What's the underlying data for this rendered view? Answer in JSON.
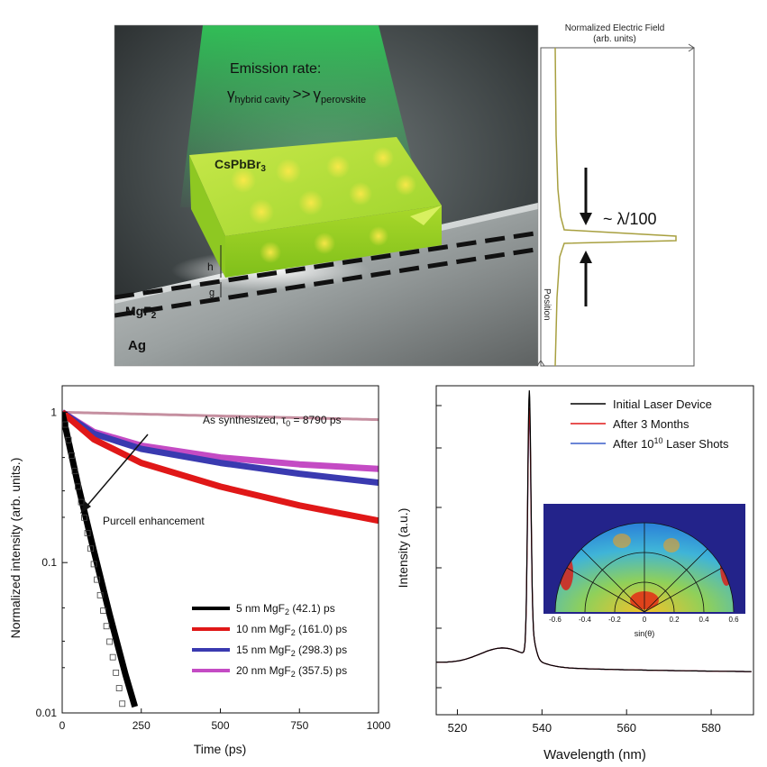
{
  "top": {
    "emission_title": "Emission rate:",
    "gamma": "γ",
    "sub_hybrid": "hybrid cavity",
    "gg": ">>",
    "sub_perov": "perovskite",
    "crystal_label": "CsPbBr",
    "crystal_sub": "3",
    "mgf_label": "MgF",
    "mgf_sub": "2",
    "ag_label": "Ag",
    "h_label": "h",
    "g_label": "g",
    "field_title_1": "Normalized Electric Field",
    "field_title_2": "(arb. units)",
    "position_label": "Position",
    "lambda_label": "~ λ/100"
  },
  "chart_data": [
    {
      "type": "line",
      "name": "decay",
      "xlabel": "Time (ps)",
      "ylabel": "Normalized intensity (arb. units.)",
      "yscale": "log",
      "xlim": [
        0,
        1000
      ],
      "ylim": [
        0.01,
        1.5
      ],
      "xticks": [
        0,
        250,
        500,
        750,
        1000
      ],
      "yticks": [
        {
          "v": 0.01,
          "label": "0.01"
        },
        {
          "v": 0.1,
          "label": "0.1"
        },
        {
          "v": 1,
          "label": "1"
        }
      ],
      "annotation_top": "As synthesized, τ",
      "annotation_top_sub": "0",
      "annotation_top_end": " = 8790 ps",
      "annotation_arrow": "Purcell enhancement",
      "series": [
        {
          "name": "As synthesized",
          "tau": 8790,
          "color": "#c58fa0",
          "end": 1000
        },
        {
          "name": "20 nm MgF₂ (357.5) ps",
          "tau": 357.5,
          "color": "#c44bc4",
          "end": 1000,
          "pts": [
            [
              0,
              1
            ],
            [
              100,
              0.74
            ],
            [
              250,
              0.6
            ],
            [
              500,
              0.5
            ],
            [
              750,
              0.45
            ],
            [
              1000,
              0.42
            ]
          ]
        },
        {
          "name": "15 nm MgF₂ (298.3) ps",
          "tau": 298.3,
          "color": "#3a3ab0",
          "end": 1000,
          "pts": [
            [
              0,
              1
            ],
            [
              100,
              0.72
            ],
            [
              250,
              0.57
            ],
            [
              500,
              0.46
            ],
            [
              750,
              0.39
            ],
            [
              1000,
              0.34
            ]
          ]
        },
        {
          "name": "10 nm MgF₂ (161.0) ps",
          "tau": 161.0,
          "color": "#e01818",
          "end": 1000,
          "pts": [
            [
              0,
              1
            ],
            [
              100,
              0.66
            ],
            [
              250,
              0.46
            ],
            [
              500,
              0.32
            ],
            [
              750,
              0.24
            ],
            [
              1000,
              0.19
            ]
          ]
        },
        {
          "name": "5 nm MgF₂ (42.1) ps",
          "tau": 42.1,
          "color": "#000000",
          "end": 230,
          "pts": [
            [
              0,
              1
            ],
            [
              50,
              0.33
            ],
            [
              100,
              0.12
            ],
            [
              150,
              0.045
            ],
            [
              200,
              0.018
            ],
            [
              230,
              0.011
            ]
          ]
        }
      ],
      "legend": [
        {
          "label": "5 nm MgF",
          "sub": "2",
          "tail": " (42.1) ps",
          "color": "#000000"
        },
        {
          "label": "10 nm MgF",
          "sub": "2",
          "tail": " (161.0) ps",
          "color": "#e01818"
        },
        {
          "label": "15 nm MgF",
          "sub": "2",
          "tail": " (298.3) ps",
          "color": "#3a3ab0"
        },
        {
          "label": "20 nm MgF",
          "sub": "2",
          "tail": " (357.5) ps",
          "color": "#c44bc4"
        }
      ]
    },
    {
      "type": "line",
      "name": "spectrum",
      "xlabel": "Wavelength (nm)",
      "ylabel": "Intensity (a.u.)",
      "xlim": [
        515,
        590
      ],
      "xticks": [
        520,
        540,
        560,
        580
      ],
      "series": [
        {
          "name": "Initial Laser Device",
          "color": "#000000",
          "peak": 1.0
        },
        {
          "name": "After 3 Months",
          "color": "#e01818",
          "peak": 0.93
        },
        {
          "name": "After 10",
          "sup": "10",
          "tail": " Laser Shots",
          "color": "#3a5fc8",
          "peak": 0.9
        }
      ],
      "inset": {
        "xlabel": "sin(θ)",
        "ticks": [
          "-0.6",
          "-0.4",
          "-0.2",
          "0",
          "0.2",
          "0.4",
          "0.6"
        ]
      }
    }
  ]
}
